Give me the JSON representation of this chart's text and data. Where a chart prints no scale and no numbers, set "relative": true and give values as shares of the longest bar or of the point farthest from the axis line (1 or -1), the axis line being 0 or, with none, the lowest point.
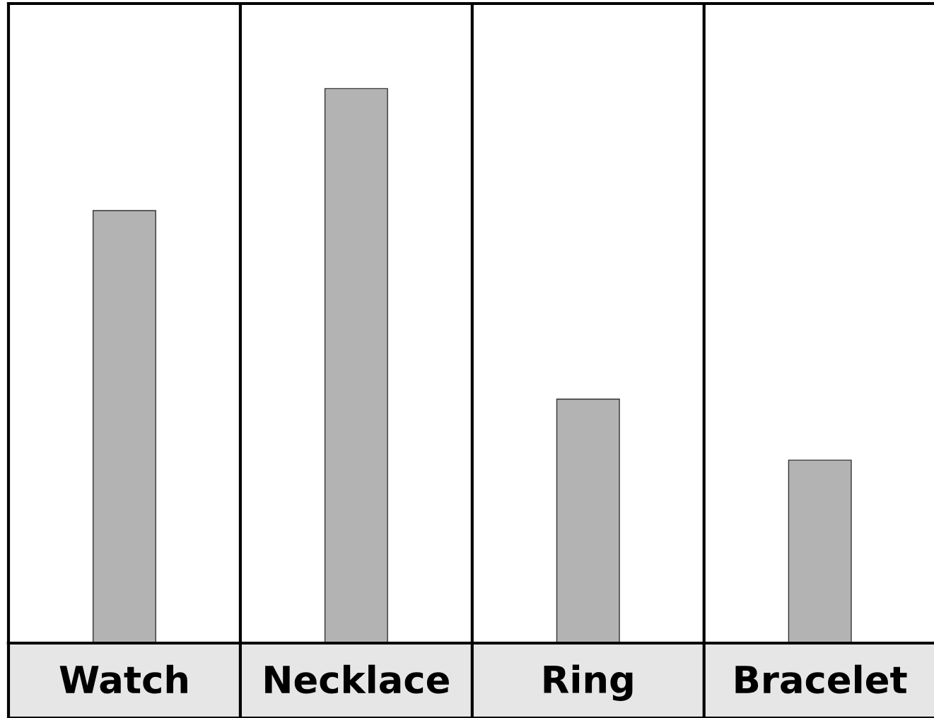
{
  "chart_data": {
    "type": "bar",
    "categories": [
      "Watch",
      "Necklace",
      "Ring",
      "Bracelet"
    ],
    "values": [
      0.78,
      1,
      0.44,
      0.33
    ],
    "relative": true,
    "color": "#b3b3b3"
  }
}
